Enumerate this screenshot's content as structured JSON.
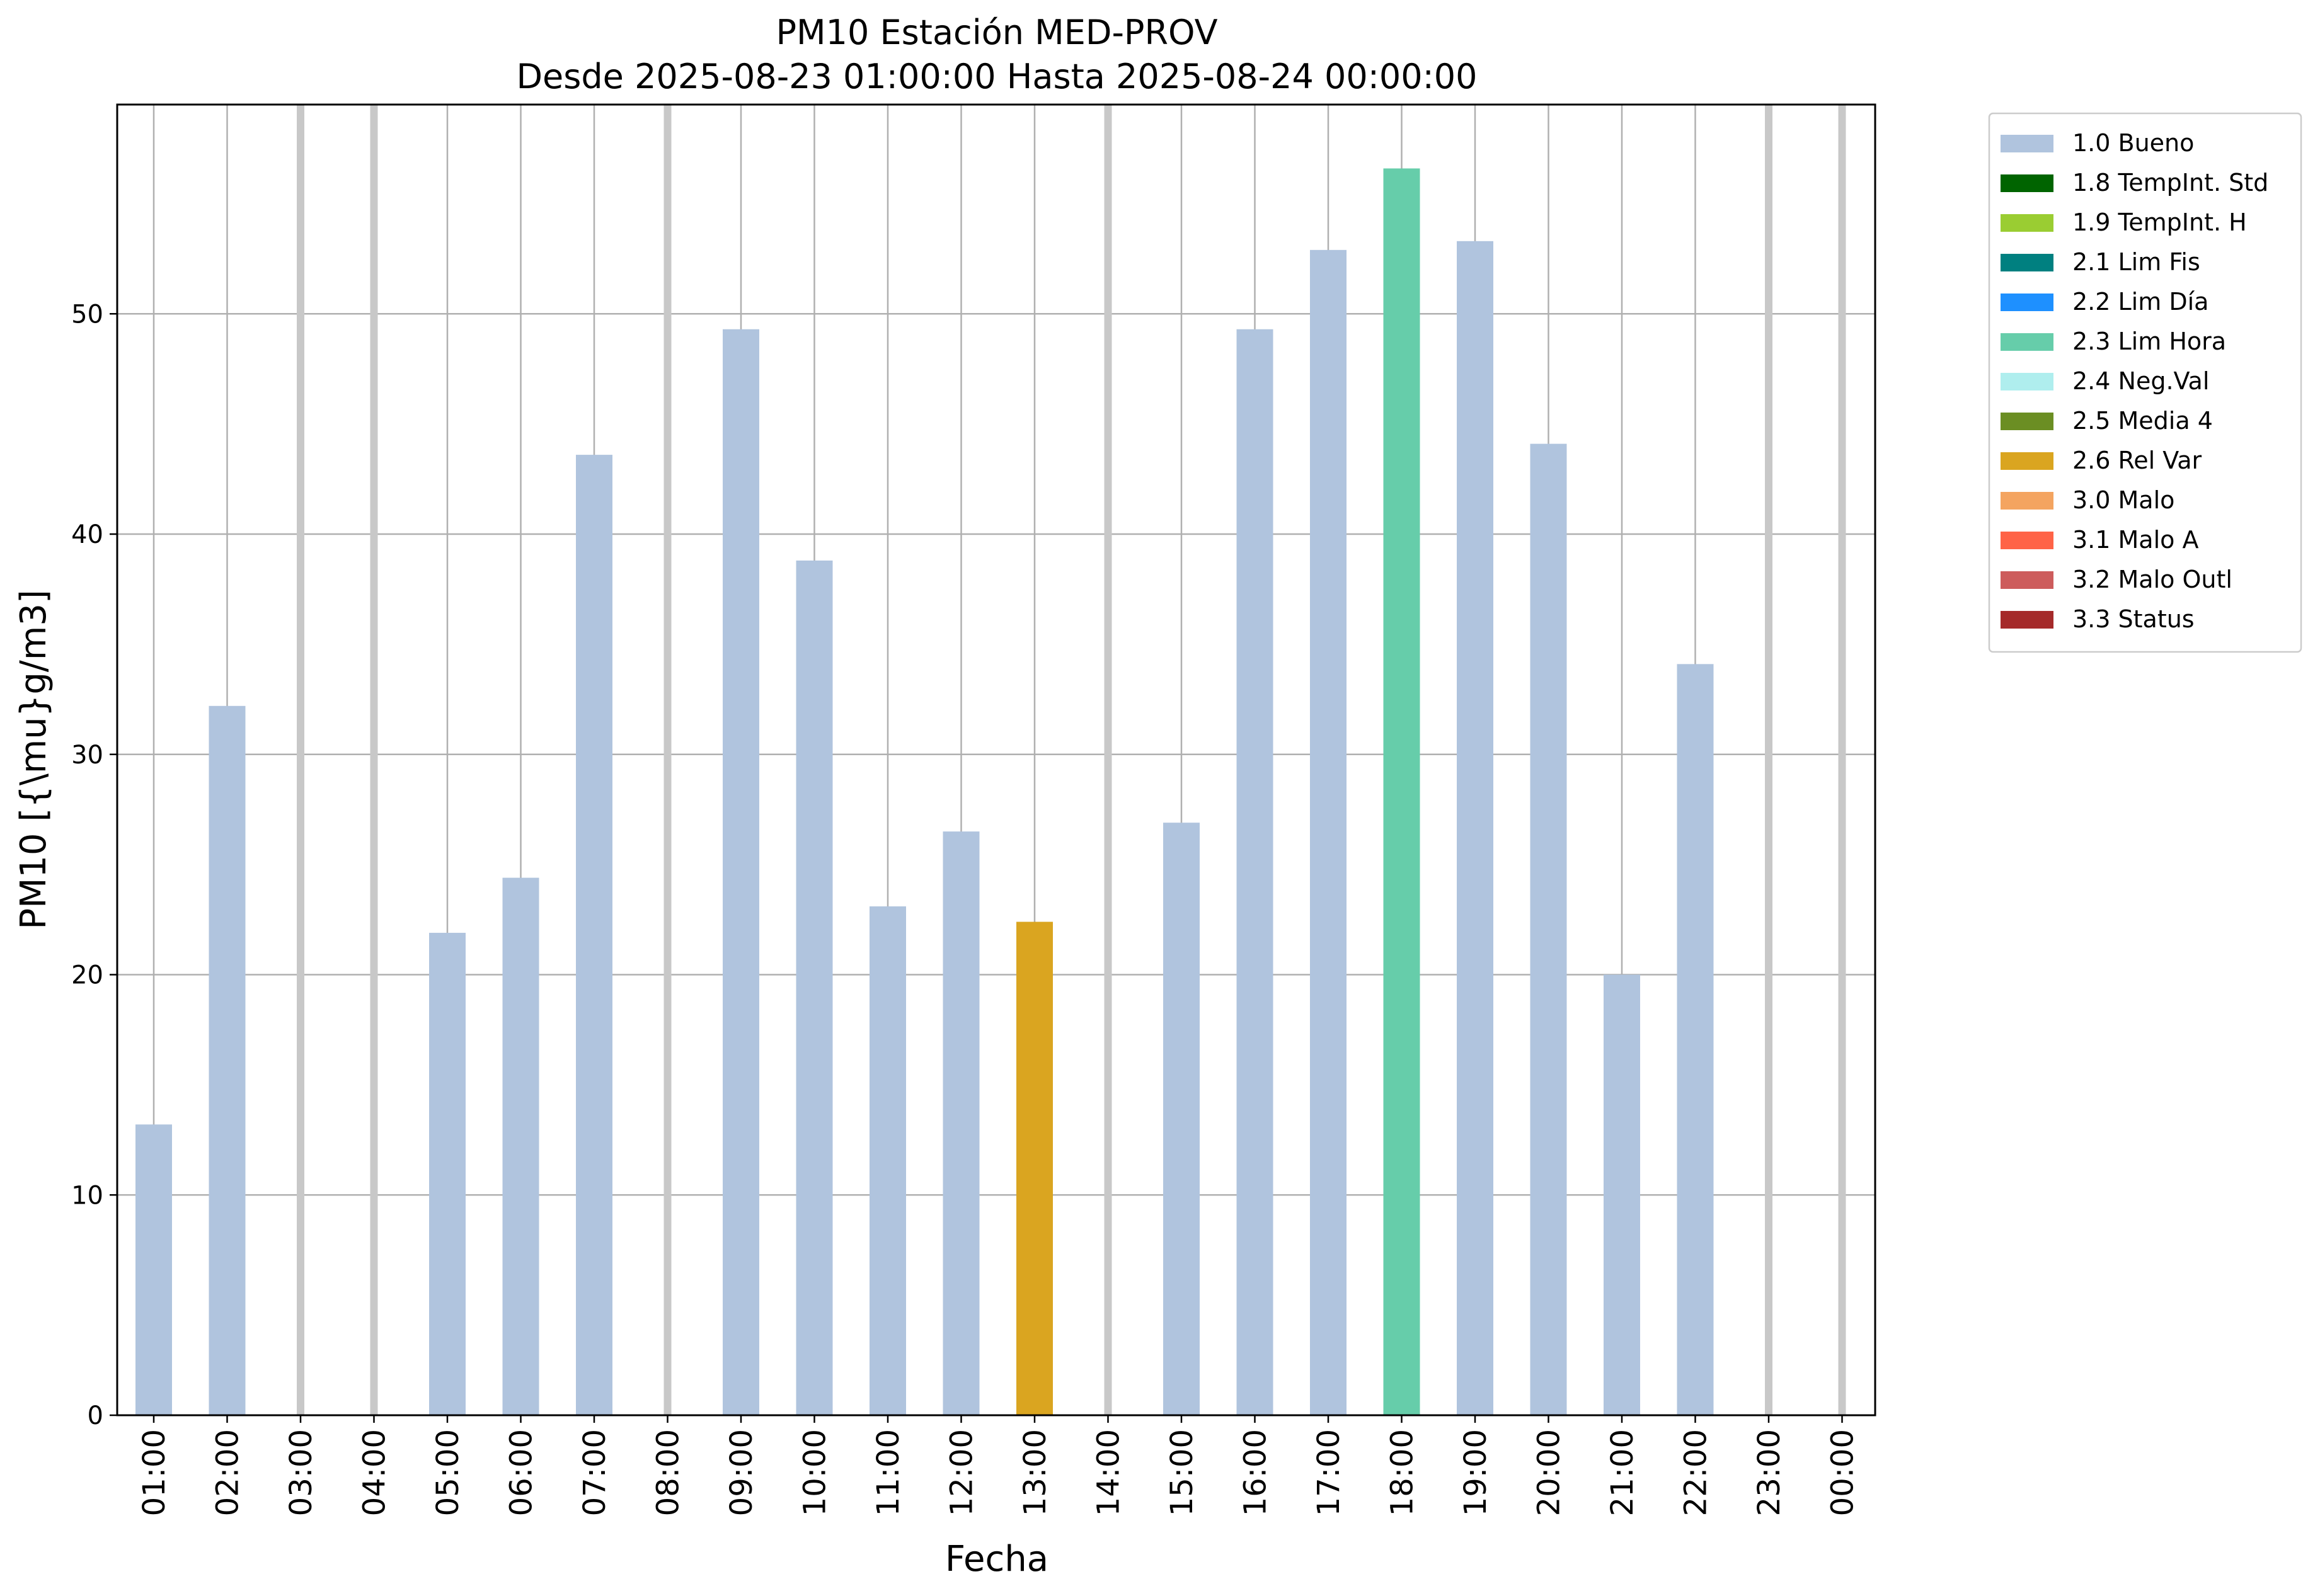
{
  "chart_data": {
    "type": "bar",
    "title": "PM10 Estación MED-PROV",
    "subtitle": "Desde 2025-08-23 01:00:00 Hasta 2025-08-24 00:00:00",
    "xlabel": "Fecha",
    "ylabel": "PM10 [{\\mu}g/m3]",
    "ylim": [
      0,
      59.5
    ],
    "yticks": [
      0,
      10,
      20,
      30,
      40,
      50
    ],
    "grid": true,
    "legend_position": "outside-right",
    "categories": [
      "01:00",
      "02:00",
      "03:00",
      "04:00",
      "05:00",
      "06:00",
      "07:00",
      "08:00",
      "09:00",
      "10:00",
      "11:00",
      "12:00",
      "13:00",
      "14:00",
      "15:00",
      "16:00",
      "17:00",
      "18:00",
      "19:00",
      "20:00",
      "21:00",
      "22:00",
      "23:00",
      "00:00"
    ],
    "values": [
      13.2,
      32.2,
      null,
      null,
      21.9,
      24.4,
      43.6,
      null,
      49.3,
      38.8,
      23.1,
      26.5,
      22.4,
      null,
      26.9,
      49.3,
      52.9,
      56.6,
      53.3,
      44.1,
      20.0,
      34.1,
      null,
      null
    ],
    "flags": [
      "1.0 Bueno",
      "1.0 Bueno",
      null,
      null,
      "1.0 Bueno",
      "1.0 Bueno",
      "1.0 Bueno",
      null,
      "1.0 Bueno",
      "1.0 Bueno",
      "1.0 Bueno",
      "1.0 Bueno",
      "2.6 Rel Var",
      null,
      "1.0 Bueno",
      "1.0 Bueno",
      "1.0 Bueno",
      "2.3 Lim Hora",
      "1.0 Bueno",
      "1.0 Bueno",
      "1.0 Bueno",
      "1.0 Bueno",
      null,
      null
    ],
    "legend": [
      {
        "label": "1.0 Bueno",
        "color": "#b0c4de"
      },
      {
        "label": "1.8 TempInt. Std",
        "color": "#006400"
      },
      {
        "label": "1.9 TempInt. H",
        "color": "#9acd32"
      },
      {
        "label": "2.1 Lim Fis",
        "color": "#008080"
      },
      {
        "label": "2.2 Lim Día",
        "color": "#1e90ff"
      },
      {
        "label": "2.3 Lim Hora",
        "color": "#66cdaa"
      },
      {
        "label": "2.4 Neg.Val",
        "color": "#afeeee"
      },
      {
        "label": "2.5 Media 4",
        "color": "#6b8e23"
      },
      {
        "label": "2.6 Rel Var",
        "color": "#daa520"
      },
      {
        "label": "3.0 Malo",
        "color": "#f4a460"
      },
      {
        "label": "3.1 Malo A",
        "color": "#ff6347"
      },
      {
        "label": "3.2 Malo Outl",
        "color": "#cd5c5c"
      },
      {
        "label": "3.3 Status",
        "color": "#a52a2a"
      }
    ],
    "missing_marker_color": "#c8c8c8"
  }
}
